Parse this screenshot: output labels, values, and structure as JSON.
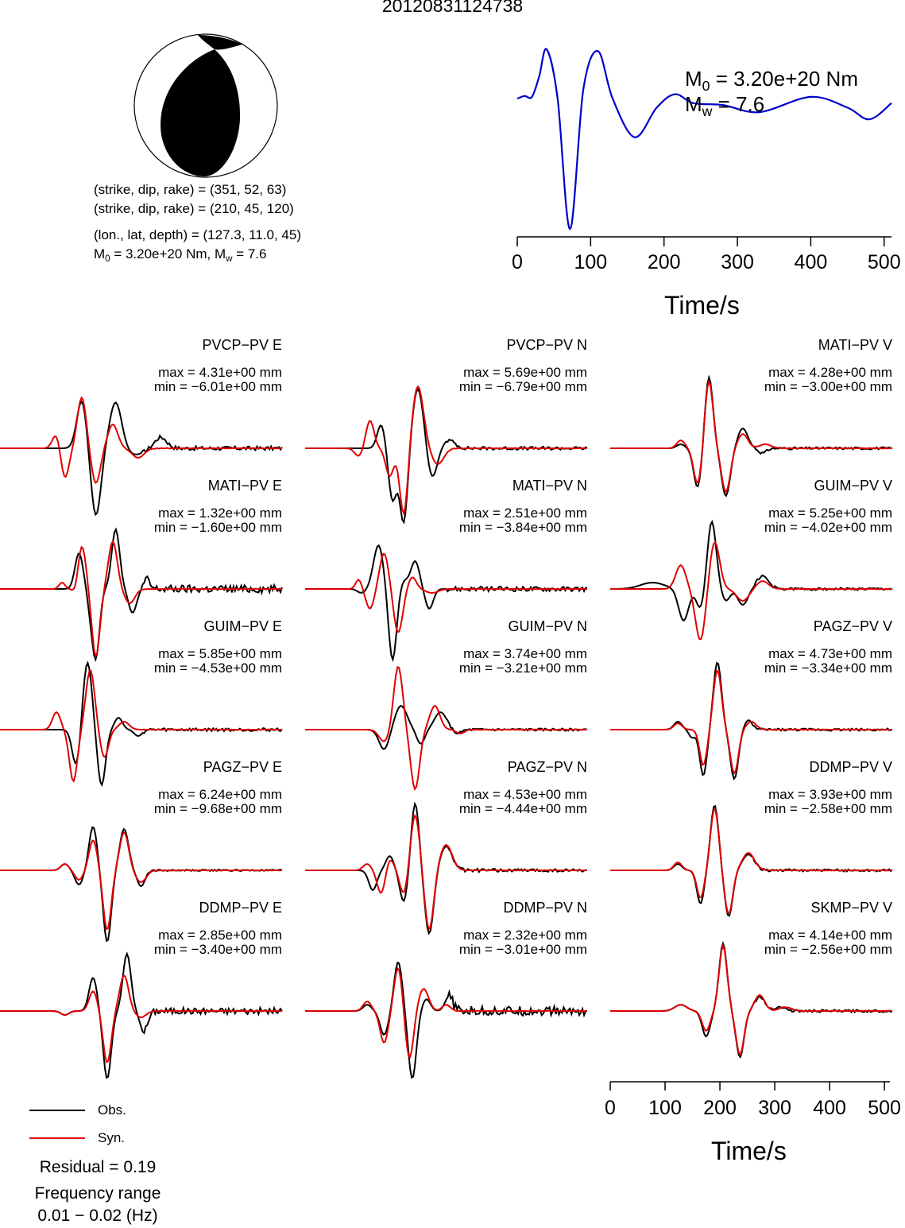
{
  "title": "20120831124738",
  "focal_mechanism": {
    "line1": "(strike, dip, rake) = (351, 52, 63)",
    "line2": "(strike, dip, rake) = (210, 45, 120)",
    "line3": "(lon., lat, depth) = (127.3, 11.0, 45)",
    "m0_prefix": "M",
    "m0_sub": "0",
    "m0_val": " = 3.20e+20 Nm, M",
    "mw_sub": "w",
    "mw_val": " = 7.6"
  },
  "stf": {
    "m0_label": "M",
    "m0_sub": "0",
    "m0_value": " = 3.20e+20 Nm",
    "mw_label": "M",
    "mw_sub": "w",
    "mw_value": " = 7.6",
    "xlabel": "Time/s",
    "color": "#0000cc"
  },
  "legend": {
    "obs": "Obs.",
    "syn": "Syn.",
    "obs_color": "#000000",
    "syn_color": "#e00000"
  },
  "residual": "Residual = 0.19",
  "freq_title": "Frequency range",
  "freq_value": "0.01 − 0.02 (Hz)",
  "bottom_axis_label": "Time/s",
  "chart_data": [
    {
      "type": "line",
      "name": "source-time-function",
      "xlabel": "Time/s",
      "xlim": [
        0,
        510
      ],
      "xticks": [
        0,
        100,
        200,
        300,
        400,
        500
      ],
      "series": [
        {
          "x": [
            0,
            10,
            20,
            30,
            40,
            55,
            72,
            90,
            110,
            130,
            160,
            190,
            215,
            240,
            280,
            330,
            400,
            450,
            480,
            510
          ],
          "y": [
            0.45,
            0.48,
            0.47,
            0.7,
            1.0,
            0.45,
            -1.0,
            0.55,
            0.98,
            0.45,
            0.02,
            0.35,
            0.5,
            0.4,
            0.38,
            0.3,
            0.47,
            0.35,
            0.22,
            0.4
          ]
        }
      ]
    },
    {
      "type": "line",
      "name": "waveform-fits",
      "xlabel": "Time/s",
      "xlim": [
        0,
        510
      ],
      "xticks": [
        0,
        100,
        200,
        300,
        400,
        500
      ],
      "traces": [
        {
          "label": "PVCP−PV E",
          "max": "max = 4.31e+00 mm",
          "min": "min = −6.01e+00 mm"
        },
        {
          "label": "PVCP−PV N",
          "max": "max = 5.69e+00 mm",
          "min": "min = −6.79e+00 mm"
        },
        {
          "label": "MATI−PV V",
          "max": "max = 4.28e+00 mm",
          "min": "min = −3.00e+00 mm"
        },
        {
          "label": "MATI−PV E",
          "max": "max = 1.32e+00 mm",
          "min": "min = −1.60e+00 mm"
        },
        {
          "label": "MATI−PV N",
          "max": "max = 2.51e+00 mm",
          "min": "min = −3.84e+00 mm"
        },
        {
          "label": "GUIM−PV V",
          "max": "max = 5.25e+00 mm",
          "min": "min = −4.02e+00 mm"
        },
        {
          "label": "GUIM−PV E",
          "max": "max = 5.85e+00 mm",
          "min": "min = −4.53e+00 mm"
        },
        {
          "label": "GUIM−PV N",
          "max": "max = 3.74e+00 mm",
          "min": "min = −3.21e+00 mm"
        },
        {
          "label": "PAGZ−PV V",
          "max": "max = 4.73e+00 mm",
          "min": "min = −3.34e+00 mm"
        },
        {
          "label": "PAGZ−PV E",
          "max": "max = 6.24e+00 mm",
          "min": "min = −9.68e+00 mm"
        },
        {
          "label": "PAGZ−PV N",
          "max": "max = 4.53e+00 mm",
          "min": "min = −4.44e+00 mm"
        },
        {
          "label": "DDMP−PV V",
          "max": "max = 3.93e+00 mm",
          "min": "min = −2.58e+00 mm"
        },
        {
          "label": "DDMP−PV E",
          "max": "max = 2.85e+00 mm",
          "min": "min = −3.40e+00 mm"
        },
        {
          "label": "DDMP−PV N",
          "max": "max = 2.32e+00 mm",
          "min": "min = −3.01e+00 mm"
        },
        {
          "label": "SKMP−PV V",
          "max": "max = 4.14e+00 mm",
          "min": "min = −2.56e+00 mm"
        }
      ]
    }
  ]
}
